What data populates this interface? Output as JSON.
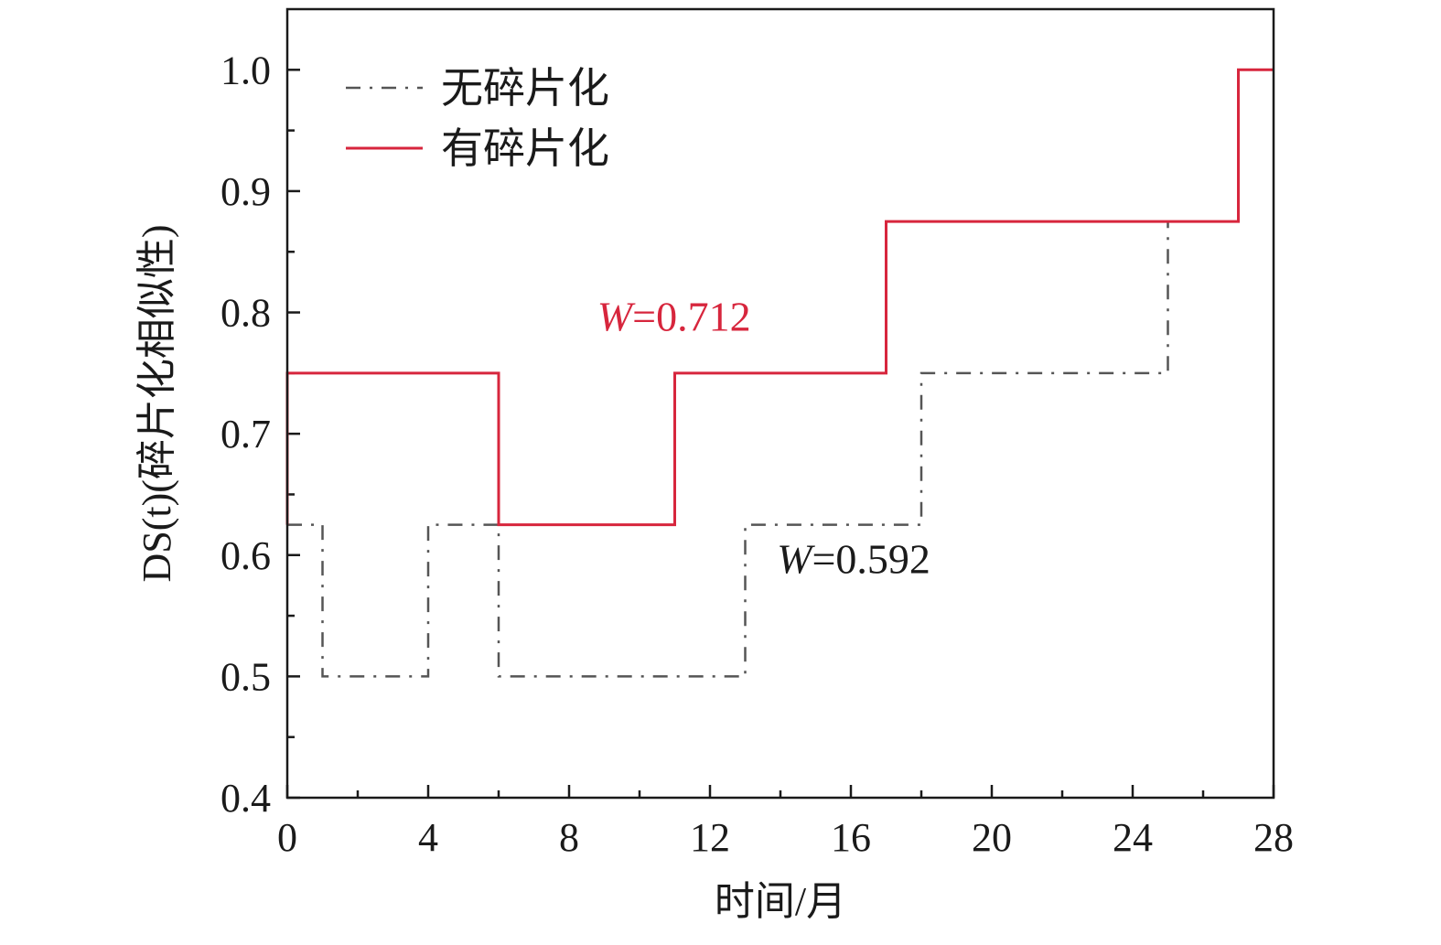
{
  "chart_data": {
    "type": "line",
    "step": true,
    "xlabel": "时间/月",
    "ylabel": "DS(t)(碎片化相似性)",
    "xlim": [
      0,
      28
    ],
    "ylim": [
      0.4,
      1.05
    ],
    "xticks": [
      0,
      4,
      8,
      12,
      16,
      20,
      24,
      28
    ],
    "xtick_labels": [
      "0",
      "4",
      "8",
      "12",
      "16",
      "20",
      "24",
      "28"
    ],
    "yticks": [
      0.4,
      0.5,
      0.6,
      0.7,
      0.8,
      0.9,
      1.0
    ],
    "ytick_labels": [
      "0.4",
      "0.5",
      "0.6",
      "0.7",
      "0.8",
      "0.9",
      "1.0"
    ],
    "legend_position": "top-left",
    "grid": false,
    "series": [
      {
        "name": "无碎片化",
        "color": "#555555",
        "dash": "dash-dot",
        "points": [
          [
            0,
            0.625
          ],
          [
            1,
            0.5
          ],
          [
            4,
            0.625
          ],
          [
            6,
            0.5
          ],
          [
            13,
            0.625
          ],
          [
            18,
            0.75
          ],
          [
            25,
            0.875
          ]
        ],
        "end_x": 25
      },
      {
        "name": "有碎片化",
        "color": "#d7263d",
        "dash": "solid",
        "points": [
          [
            0,
            0.625
          ],
          [
            0,
            0.75
          ],
          [
            6,
            0.625
          ],
          [
            11,
            0.75
          ],
          [
            17,
            0.875
          ],
          [
            27,
            1.0
          ]
        ],
        "end_x": 28
      }
    ],
    "annotations": [
      {
        "prefix": "W",
        "text": "=0.712",
        "color": "#d7263d",
        "x": 8.8,
        "y": 0.785
      },
      {
        "prefix": "W",
        "text": "=0.592",
        "color": "#1a1a1a",
        "x": 13.9,
        "y": 0.585
      }
    ]
  }
}
